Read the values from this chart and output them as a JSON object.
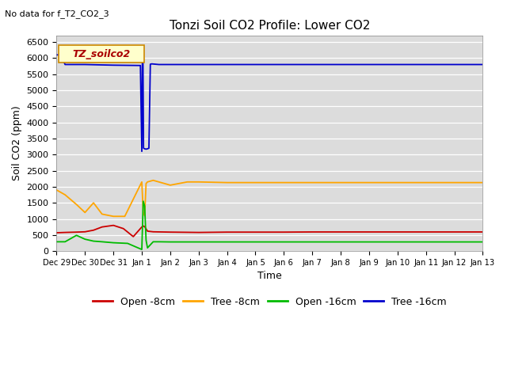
{
  "title": "Tonzi Soil CO2 Profile: Lower CO2",
  "no_data_label": "No data for f_T2_CO2_3",
  "ylabel": "Soil CO2 (ppm)",
  "xlabel": "Time",
  "ylim": [
    0,
    6700
  ],
  "background_color": "#dcdcdc",
  "legend_label": "TZ_soilco2",
  "legend_series": [
    "Open -8cm",
    "Tree -8cm",
    "Open -16cm",
    "Tree -16cm"
  ],
  "series_colors": [
    "#cc0000",
    "#ffa500",
    "#00bb00",
    "#0000cc"
  ],
  "series": {
    "open_8cm": {
      "x": [
        0.0,
        0.15,
        0.3,
        0.7,
        1.0,
        1.3,
        1.6,
        2.0,
        2.35,
        2.7,
        3.0,
        3.05,
        3.1,
        3.2,
        3.4,
        4.0,
        5.0,
        6.0,
        7.0,
        8.0,
        9.0,
        10.0,
        11.0,
        12.0,
        13.0,
        14.0,
        15.0
      ],
      "y": [
        570,
        575,
        580,
        590,
        600,
        650,
        750,
        800,
        700,
        450,
        750,
        780,
        760,
        620,
        600,
        590,
        580,
        590,
        590,
        590,
        595,
        595,
        595,
        595,
        595,
        595,
        595
      ]
    },
    "tree_8cm": {
      "x": [
        0.0,
        0.3,
        0.7,
        1.0,
        1.3,
        1.6,
        2.0,
        2.4,
        3.0,
        3.05,
        3.1,
        3.15,
        3.2,
        3.4,
        4.0,
        4.3,
        4.6,
        5.0,
        6.0,
        7.0,
        8.0,
        9.0,
        10.0,
        11.0,
        12.0,
        13.0,
        14.0,
        15.0
      ],
      "y": [
        1900,
        1750,
        1450,
        1200,
        1500,
        1150,
        1080,
        1080,
        2150,
        1200,
        1100,
        2100,
        2150,
        2200,
        2050,
        2100,
        2150,
        2150,
        2130,
        2130,
        2130,
        2130,
        2130,
        2130,
        2130,
        2130,
        2130,
        2130
      ]
    },
    "open_16cm": {
      "x": [
        0.0,
        0.3,
        0.7,
        1.0,
        1.3,
        1.6,
        2.0,
        2.5,
        3.0,
        3.05,
        3.1,
        3.15,
        3.2,
        3.4,
        3.6,
        4.0,
        5.0,
        6.0,
        7.0,
        8.0,
        9.0,
        10.0,
        11.0,
        12.0,
        13.0,
        14.0,
        15.0
      ],
      "y": [
        290,
        290,
        490,
        370,
        310,
        290,
        260,
        240,
        50,
        1550,
        1400,
        340,
        100,
        290,
        290,
        285,
        285,
        285,
        285,
        285,
        285,
        285,
        285,
        285,
        285,
        285,
        285
      ]
    },
    "tree_16cm": {
      "x": [
        0.0,
        0.15,
        0.3,
        1.0,
        2.0,
        2.95,
        3.0,
        3.02,
        3.04,
        3.06,
        3.1,
        3.15,
        3.2,
        3.25,
        3.3,
        3.35,
        3.6,
        4.0,
        5.0,
        6.0,
        7.0,
        8.0,
        9.0,
        10.0,
        11.0,
        12.0,
        13.0,
        14.0,
        15.0
      ],
      "y": [
        6100,
        6100,
        5800,
        5800,
        5780,
        5770,
        3100,
        6100,
        6100,
        3200,
        3180,
        3170,
        3180,
        3200,
        5810,
        5820,
        5800,
        5800,
        5800,
        5800,
        5800,
        5800,
        5800,
        5800,
        5800,
        5800,
        5800,
        5800,
        5800
      ]
    }
  },
  "xtick_labels": [
    "Dec 29",
    "Dec 30",
    "Dec 31",
    "Jan 1",
    "Jan 2",
    "Jan 3",
    "Jan 4",
    "Jan 5",
    "Jan 6",
    "Jan 7",
    "Jan 8",
    "Jan 9",
    "Jan 10",
    "Jan 11",
    "Jan 12",
    "Jan 13"
  ],
  "xtick_positions": [
    0,
    1,
    2,
    3,
    4,
    5,
    6,
    7,
    8,
    9,
    10,
    11,
    12,
    13,
    14,
    15
  ],
  "ytick_labels": [
    "0",
    "500",
    "1000",
    "1500",
    "2000",
    "2500",
    "3000",
    "3500",
    "4000",
    "4500",
    "5000",
    "5500",
    "6000",
    "6500"
  ],
  "ytick_positions": [
    0,
    500,
    1000,
    1500,
    2000,
    2500,
    3000,
    3500,
    4000,
    4500,
    5000,
    5500,
    6000,
    6500
  ],
  "figsize": [
    6.4,
    4.8
  ],
  "dpi": 100
}
